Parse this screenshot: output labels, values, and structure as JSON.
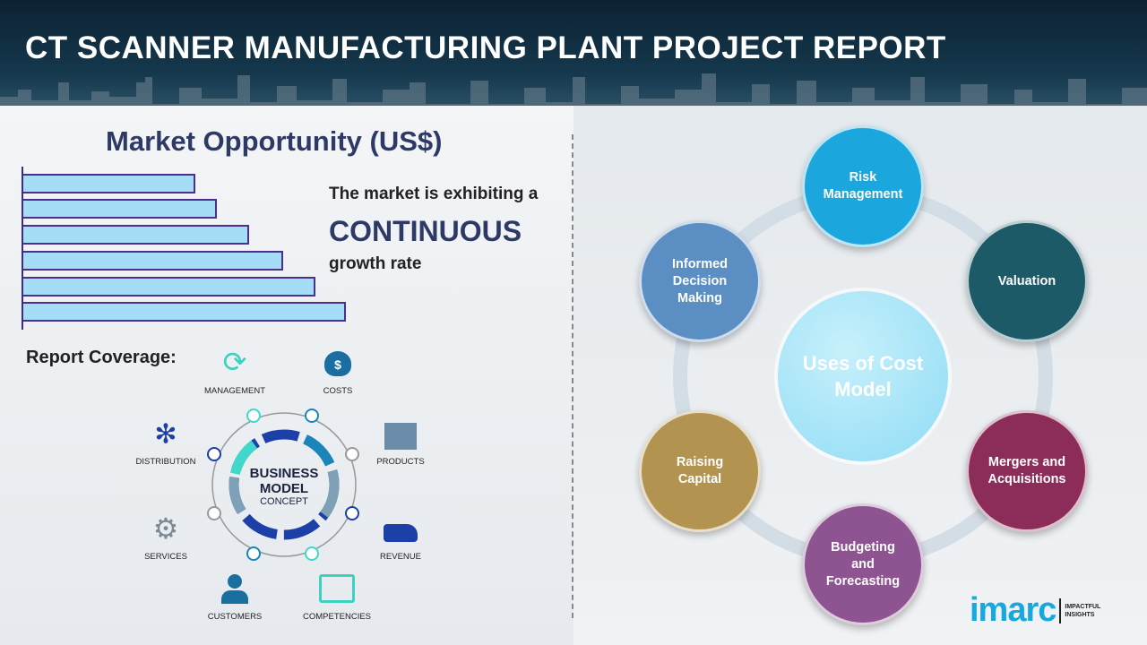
{
  "header": {
    "title": "CT SCANNER MANUFACTURING PLANT PROJECT REPORT"
  },
  "market": {
    "title": "Market Opportunity (US$)",
    "line1": "The market is exhibiting a",
    "line2": "CONTINUOUS",
    "line3": "growth rate"
  },
  "coverage": {
    "title": "Report Coverage:",
    "center_bold": "BUSINESS MODEL",
    "center_sub": "CONCEPT",
    "items": [
      "MANAGEMENT",
      "COSTS",
      "DISTRIBUTION",
      "PRODUCTS",
      "SERVICES",
      "REVENUE",
      "CUSTOMERS",
      "COMPETENCIES"
    ]
  },
  "uses": {
    "center": "Uses of Cost Model",
    "nodes": [
      {
        "label": "Risk Management",
        "color": "#1ba6de"
      },
      {
        "label": "Valuation",
        "color": "#1d5a68"
      },
      {
        "label": "Mergers and Acquisitions",
        "color": "#8b2d58"
      },
      {
        "label": "Budgeting and Forecasting",
        "color": "#8e5391"
      },
      {
        "label": "Raising Capital",
        "color": "#b39350"
      },
      {
        "label": "Informed Decision Making",
        "color": "#5b8ec2"
      }
    ]
  },
  "logo": {
    "word": "imarc",
    "tag1": "IMPACTFUL",
    "tag2": "INSIGHTS"
  }
}
